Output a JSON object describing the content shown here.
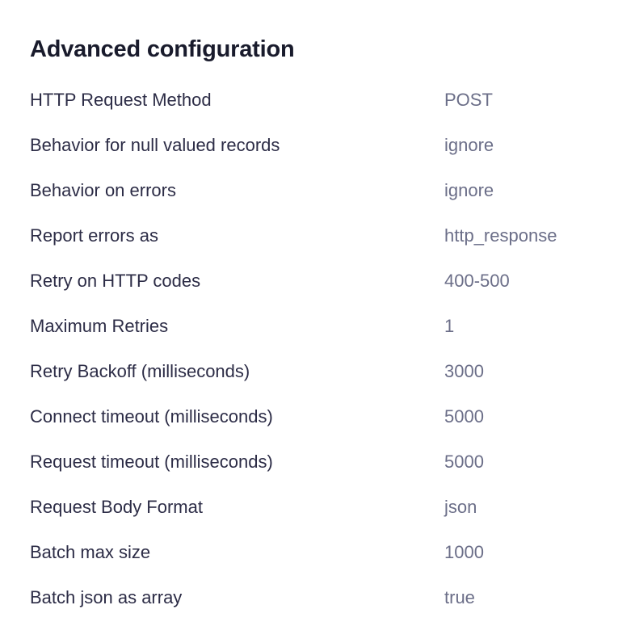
{
  "section": {
    "title": "Advanced configuration"
  },
  "rows": [
    {
      "label": "HTTP Request Method",
      "value": "POST"
    },
    {
      "label": "Behavior for null valued records",
      "value": "ignore"
    },
    {
      "label": "Behavior on errors",
      "value": "ignore"
    },
    {
      "label": "Report errors as",
      "value": "http_response"
    },
    {
      "label": "Retry on HTTP codes",
      "value": "400-500"
    },
    {
      "label": "Maximum Retries",
      "value": "1"
    },
    {
      "label": "Retry Backoff (milliseconds)",
      "value": "3000"
    },
    {
      "label": "Connect timeout (milliseconds)",
      "value": "5000"
    },
    {
      "label": "Request timeout (milliseconds)",
      "value": "5000"
    },
    {
      "label": "Request Body Format",
      "value": "json"
    },
    {
      "label": "Batch max size",
      "value": "1000"
    },
    {
      "label": "Batch json as array",
      "value": "true"
    }
  ],
  "colors": {
    "title": "#191b2c",
    "label": "#2c2c46",
    "value": "#6b6e88",
    "background": "#ffffff"
  }
}
